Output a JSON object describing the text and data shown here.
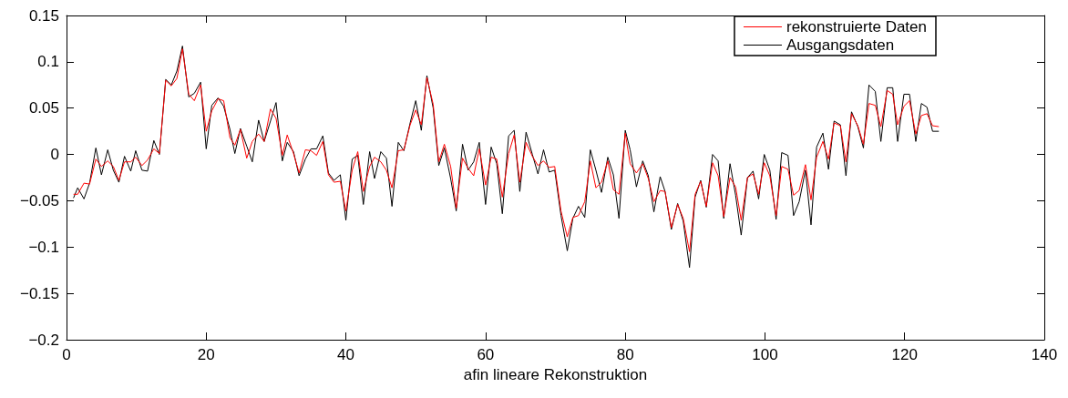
{
  "chart_data": {
    "type": "line",
    "xlabel": "afin lineare Rekonstruktion",
    "x": [
      1.0,
      1.6,
      2.5,
      3.3,
      4.2,
      5.0,
      5.9,
      6.7,
      7.5,
      8.3,
      9.2,
      9.9,
      10.8,
      11.6,
      12.5,
      13.3,
      14.2,
      15.0,
      15.8,
      16.6,
      17.5,
      18.3,
      19.2,
      20.0,
      20.8,
      21.7,
      22.5,
      23.4,
      24.1,
      24.9,
      25.8,
      26.6,
      27.5,
      28.3,
      29.2,
      30.0,
      30.9,
      31.6,
      32.5,
      33.3,
      34.2,
      35.0,
      35.8,
      36.7,
      37.5,
      38.3,
      39.2,
      40.0,
      40.9,
      41.7,
      42.5,
      43.4,
      44.1,
      45.0,
      45.8,
      46.6,
      47.5,
      48.3,
      49.2,
      50.0,
      50.8,
      51.6,
      52.5,
      53.3,
      54.1,
      55.0,
      55.8,
      56.7,
      57.5,
      58.3,
      59.1,
      60.0,
      60.8,
      61.6,
      62.4,
      63.3,
      64.1,
      64.9,
      65.8,
      66.7,
      67.5,
      68.3,
      69.1,
      69.9,
      70.8,
      71.7,
      72.5,
      73.3,
      74.2,
      75.0,
      75.8,
      76.6,
      77.5,
      78.3,
      79.1,
      80.0,
      80.7,
      81.6,
      82.5,
      83.3,
      84.1,
      85.0,
      85.7,
      86.6,
      87.5,
      88.3,
      89.2,
      90.0,
      90.8,
      91.6,
      92.5,
      93.3,
      94.1,
      95.0,
      95.8,
      96.6,
      97.5,
      98.3,
      99.1,
      99.9,
      100.7,
      101.6,
      102.4,
      103.3,
      104.1,
      104.9,
      105.8,
      106.6,
      107.4,
      108.3,
      109.1,
      109.9,
      110.8,
      111.6,
      112.4,
      113.3,
      114.1,
      114.9,
      115.8,
      116.6,
      117.5,
      118.3,
      119.0,
      119.9,
      120.7,
      121.6,
      122.4,
      123.2,
      124.0,
      124.9
    ],
    "series": [
      {
        "name": "rekonstruierte Daten",
        "color": "#ff0000",
        "values": [
          -0.043,
          -0.043,
          -0.031,
          -0.032,
          -0.005,
          -0.013,
          -0.007,
          -0.013,
          -0.028,
          -0.008,
          -0.008,
          -0.003,
          -0.012,
          -0.006,
          0.006,
          0.001,
          0.08,
          0.074,
          0.082,
          0.114,
          0.065,
          0.058,
          0.075,
          0.025,
          0.047,
          0.06,
          0.058,
          0.018,
          0.01,
          0.027,
          -0.004,
          0.014,
          0.022,
          0.014,
          0.049,
          0.039,
          -0.001,
          0.021,
          0.001,
          -0.02,
          0.005,
          0.004,
          -0.001,
          0.014,
          -0.022,
          -0.03,
          -0.029,
          -0.061,
          -0.017,
          0.003,
          -0.04,
          -0.013,
          -0.003,
          -0.008,
          -0.017,
          -0.036,
          0.004,
          0.005,
          0.032,
          0.048,
          0.032,
          0.083,
          0.054,
          -0.008,
          0.011,
          -0.013,
          -0.058,
          -0.004,
          -0.015,
          -0.023,
          0.006,
          -0.033,
          -0.003,
          -0.005,
          -0.046,
          0.001,
          0.021,
          -0.03,
          0.013,
          -0.002,
          -0.012,
          -0.007,
          -0.014,
          -0.013,
          -0.061,
          -0.089,
          -0.068,
          -0.066,
          -0.051,
          -0.007,
          -0.036,
          -0.03,
          -0.007,
          -0.038,
          -0.043,
          0.023,
          -0.01,
          -0.02,
          -0.01,
          -0.026,
          -0.051,
          -0.039,
          -0.04,
          -0.079,
          -0.054,
          -0.069,
          -0.105,
          -0.043,
          -0.029,
          -0.056,
          -0.009,
          -0.023,
          -0.067,
          -0.025,
          -0.035,
          -0.071,
          -0.025,
          -0.021,
          -0.043,
          -0.009,
          -0.023,
          -0.066,
          -0.013,
          -0.016,
          -0.044,
          -0.039,
          -0.011,
          -0.049,
          -0.003,
          0.014,
          -0.005,
          0.034,
          0.031,
          -0.008,
          0.044,
          0.031,
          0.011,
          0.055,
          0.053,
          0.03,
          0.069,
          0.065,
          0.032,
          0.052,
          0.058,
          0.022,
          0.042,
          0.044,
          0.031,
          0.03
        ]
      },
      {
        "name": "Ausgangsdaten",
        "color": "#000000",
        "values": [
          -0.047,
          -0.036,
          -0.048,
          -0.031,
          0.007,
          -0.022,
          0.005,
          -0.017,
          -0.03,
          -0.002,
          -0.018,
          0.004,
          -0.017,
          -0.018,
          0.015,
          0.0,
          0.081,
          0.075,
          0.09,
          0.117,
          0.062,
          0.066,
          0.078,
          0.006,
          0.053,
          0.061,
          0.052,
          0.027,
          0.001,
          0.028,
          0.009,
          -0.008,
          0.037,
          0.014,
          0.036,
          0.056,
          -0.007,
          0.013,
          0.003,
          -0.023,
          -0.005,
          0.006,
          0.006,
          0.02,
          -0.02,
          -0.028,
          -0.022,
          -0.071,
          -0.005,
          -0.001,
          -0.054,
          0.003,
          -0.026,
          0.003,
          -0.004,
          -0.056,
          0.013,
          0.004,
          0.034,
          0.058,
          0.026,
          0.085,
          0.05,
          -0.012,
          0.007,
          -0.026,
          -0.061,
          0.011,
          -0.017,
          -0.008,
          0.013,
          -0.054,
          0.008,
          -0.01,
          -0.064,
          0.02,
          0.026,
          -0.04,
          0.024,
          0.0,
          -0.021,
          0.005,
          -0.019,
          -0.017,
          -0.066,
          -0.104,
          -0.069,
          -0.056,
          -0.068,
          0.005,
          -0.017,
          -0.041,
          -0.003,
          -0.022,
          -0.069,
          0.026,
          0.005,
          -0.035,
          -0.007,
          -0.023,
          -0.062,
          -0.024,
          -0.04,
          -0.081,
          -0.053,
          -0.072,
          -0.122,
          -0.046,
          -0.028,
          -0.057,
          0.0,
          -0.007,
          -0.069,
          -0.01,
          -0.044,
          -0.087,
          -0.025,
          -0.018,
          -0.048,
          0.0,
          -0.017,
          -0.07,
          0.002,
          -0.001,
          -0.066,
          -0.051,
          -0.017,
          -0.076,
          0.008,
          0.023,
          -0.016,
          0.036,
          0.032,
          -0.023,
          0.046,
          0.03,
          0.007,
          0.075,
          0.068,
          0.014,
          0.072,
          0.072,
          0.014,
          0.065,
          0.065,
          0.014,
          0.055,
          0.051,
          0.025,
          0.025
        ]
      }
    ],
    "xlim": [
      0,
      140
    ],
    "xticks": [
      0,
      20,
      40,
      60,
      80,
      100,
      120,
      140
    ],
    "ylim": [
      -0.2,
      0.15
    ],
    "yticks": [
      {
        "value": -0.2,
        "label": "−0.2"
      },
      {
        "value": -0.15,
        "label": "−0.15"
      },
      {
        "value": -0.1,
        "label": "−0.1"
      },
      {
        "value": -0.05,
        "label": "−0.05"
      },
      0,
      0.05,
      0.1,
      0.15
    ],
    "grid": false,
    "legend": "top right",
    "marker": "none",
    "line_style": "solid"
  }
}
